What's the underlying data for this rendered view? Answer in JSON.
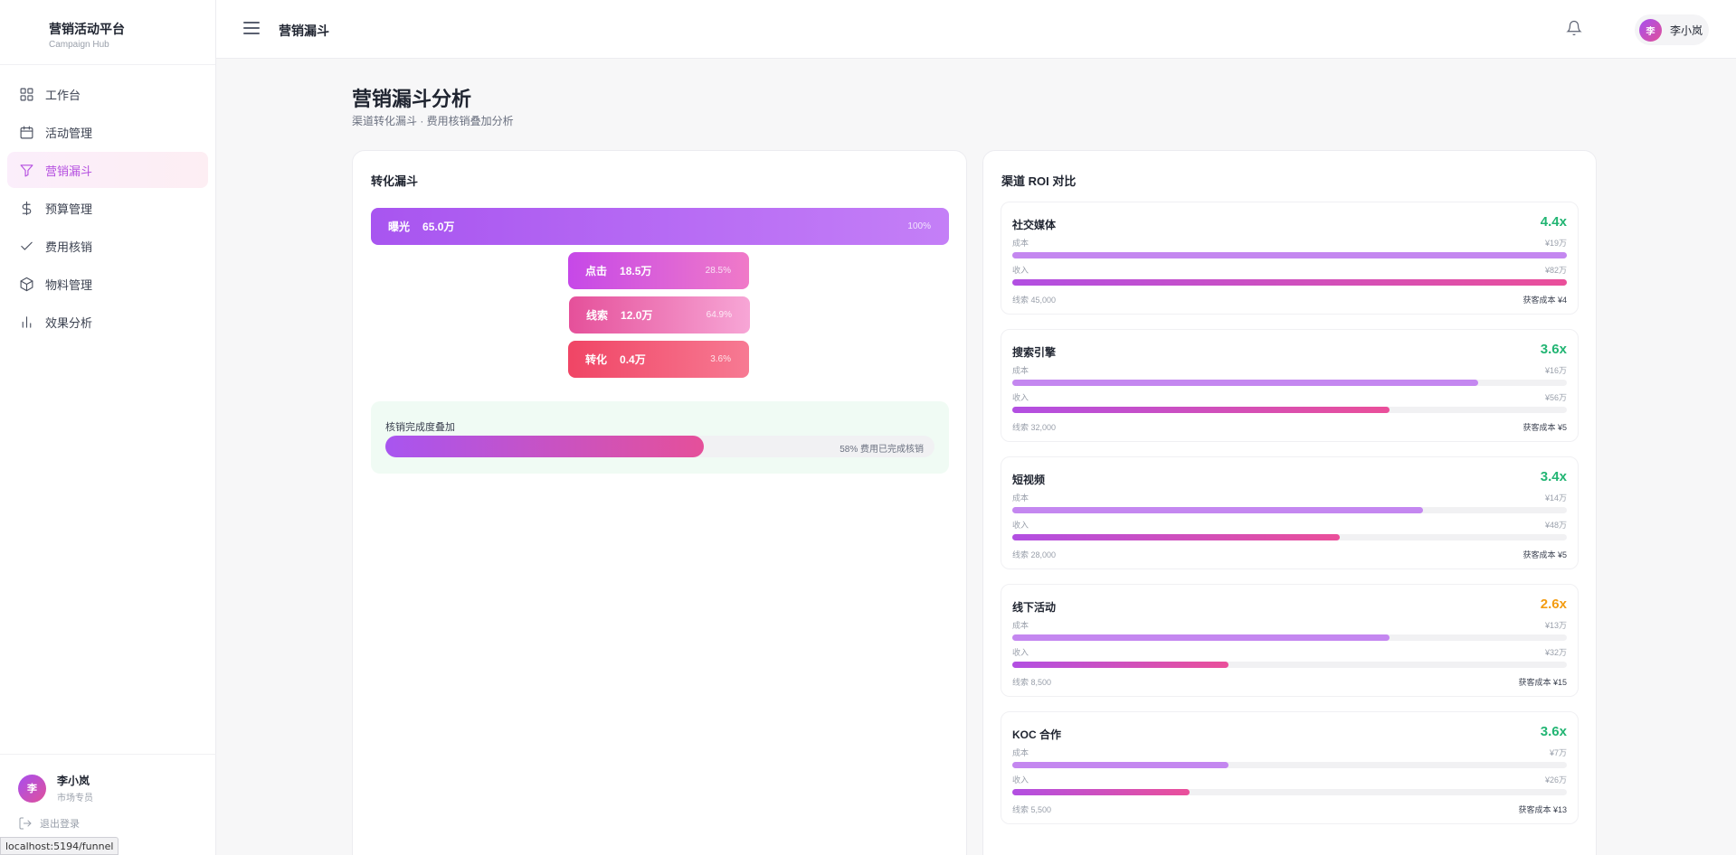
{
  "brand": {
    "title": "营销活动平台",
    "subtitle": "Campaign Hub"
  },
  "sidebar": {
    "items": [
      {
        "label": "工作台",
        "icon": "grid-icon"
      },
      {
        "label": "活动管理",
        "icon": "calendar-icon"
      },
      {
        "label": "营销漏斗",
        "icon": "funnel-icon",
        "active": true
      },
      {
        "label": "预算管理",
        "icon": "dollar-icon"
      },
      {
        "label": "费用核销",
        "icon": "check-icon"
      },
      {
        "label": "物料管理",
        "icon": "box-icon"
      },
      {
        "label": "效果分析",
        "icon": "bar-chart-icon"
      }
    ],
    "user": {
      "avatar": "李",
      "name": "李小岚",
      "role": "市场专员"
    },
    "logout": "退出登录",
    "status_url": "localhost:5194/funnel"
  },
  "topbar": {
    "title": "营销漏斗",
    "user_avatar": "李",
    "user_name": "李小岚"
  },
  "page": {
    "title": "营销漏斗分析",
    "subtitle": "渠道转化漏斗 · 费用核销叠加分析"
  },
  "funnel": {
    "title": "转化漏斗",
    "stages": [
      {
        "stage": "曝光",
        "value": "65.0万",
        "pct": "100%"
      },
      {
        "stage": "点击",
        "value": "18.5万",
        "pct": "28.5%"
      },
      {
        "stage": "线索",
        "value": "12.0万",
        "pct": "64.9%"
      },
      {
        "stage": "转化",
        "value": "0.4万",
        "pct": "3.6%"
      }
    ],
    "verification": {
      "label": "核销完成度叠加",
      "progress": 0.58,
      "text": "58% 费用已完成核销"
    }
  },
  "roi": {
    "title": "渠道 ROI 对比",
    "cost_label": "成本",
    "revenue_label": "收入",
    "colors": {
      "high": "#22b573",
      "mid": "#f39c12"
    },
    "channels": [
      {
        "name": "社交媒体",
        "roi": "4.4x",
        "level": "high",
        "cost": "¥19万",
        "cost_ratio": 1.0,
        "revenue": "¥82万",
        "revenue_ratio": 1.0,
        "leads": "线索 45,000",
        "cac": "获客成本 ¥4"
      },
      {
        "name": "搜索引擎",
        "roi": "3.6x",
        "level": "high",
        "cost": "¥16万",
        "cost_ratio": 0.84,
        "revenue": "¥56万",
        "revenue_ratio": 0.68,
        "leads": "线索 32,000",
        "cac": "获客成本 ¥5"
      },
      {
        "name": "短视频",
        "roi": "3.4x",
        "level": "high",
        "cost": "¥14万",
        "cost_ratio": 0.74,
        "revenue": "¥48万",
        "revenue_ratio": 0.59,
        "leads": "线索 28,000",
        "cac": "获客成本 ¥5"
      },
      {
        "name": "线下活动",
        "roi": "2.6x",
        "level": "mid",
        "cost": "¥13万",
        "cost_ratio": 0.68,
        "revenue": "¥32万",
        "revenue_ratio": 0.39,
        "leads": "线索 8,500",
        "cac": "获客成本 ¥15"
      },
      {
        "name": "KOC 合作",
        "roi": "3.6x",
        "level": "high",
        "cost": "¥7万",
        "cost_ratio": 0.39,
        "revenue": "¥26万",
        "revenue_ratio": 0.32,
        "leads": "线索 5,500",
        "cac": "获客成本 ¥13"
      }
    ]
  }
}
